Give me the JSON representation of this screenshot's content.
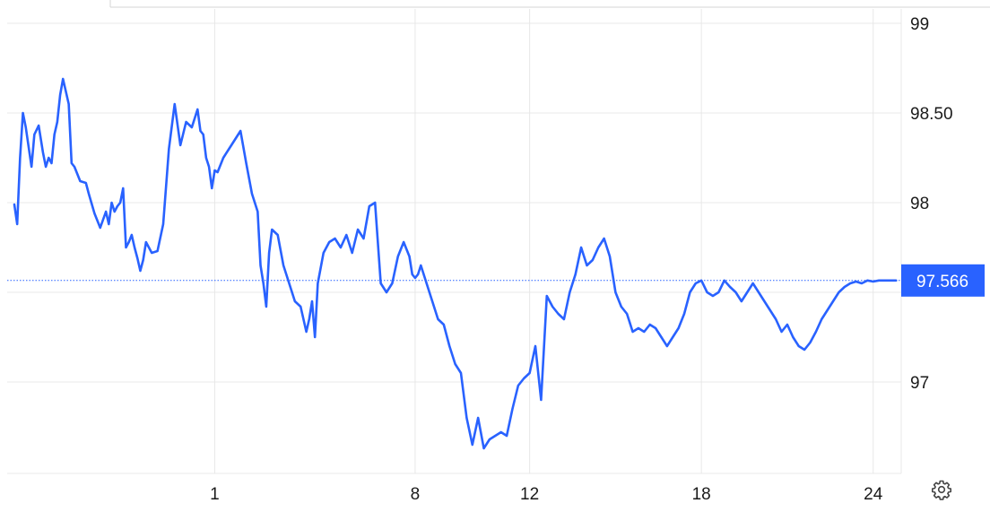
{
  "colors": {
    "line": "#2962ff",
    "grid": "#e8e8e8",
    "axis_border": "#d6d6d6",
    "current_price_bg": "#2962ff",
    "current_price_line": "#2962ff"
  },
  "icons": {
    "settings": "gear-icon"
  },
  "chart_data": {
    "type": "line",
    "title": "",
    "xlabel": "",
    "ylabel": "",
    "x_tick_labels": [
      "1",
      "8",
      "12",
      "18",
      "24"
    ],
    "x_tick_positions": [
      8,
      15,
      19,
      25,
      31
    ],
    "y_tick_labels": [
      "99",
      "98.50",
      "98",
      "97"
    ],
    "y_tick_values": [
      99,
      98.5,
      98,
      97
    ],
    "ylim": [
      96.49,
      99.08
    ],
    "xlim": [
      0.75,
      31.98
    ],
    "grid": true,
    "last_value_label": "97.566",
    "last_value": 97.566,
    "series": [
      {
        "x": [
          1.0,
          1.1,
          1.2,
          1.3,
          1.4,
          1.6,
          1.7,
          1.85,
          2.0,
          2.1,
          2.2,
          2.3,
          2.4,
          2.5,
          2.6,
          2.7,
          2.9,
          3.0,
          3.1,
          3.3,
          3.5,
          3.6,
          3.8,
          4.0,
          4.2,
          4.3,
          4.4,
          4.5,
          4.6,
          4.7,
          4.8,
          4.9,
          5.0,
          5.1,
          5.2,
          5.3,
          5.4,
          5.5,
          5.6,
          5.8,
          6.0,
          6.2,
          6.4,
          6.6,
          6.8,
          7.0,
          7.2,
          7.4,
          7.5,
          7.6,
          7.7,
          7.8,
          7.9,
          8.0,
          8.1,
          8.3,
          8.5,
          8.7,
          8.9,
          9.1,
          9.3,
          9.5,
          9.6,
          9.7,
          9.8,
          9.9,
          10.0,
          10.2,
          10.4,
          10.6,
          10.8,
          11.0,
          11.2,
          11.3,
          11.4,
          11.5,
          11.6,
          11.8,
          12.0,
          12.2,
          12.4,
          12.6,
          12.8,
          13.0,
          13.2,
          13.4,
          13.6,
          13.8,
          14.0,
          14.2,
          14.4,
          14.6,
          14.8,
          14.9,
          15.0,
          15.1,
          15.2,
          15.4,
          15.6,
          15.8,
          16.0,
          16.2,
          16.4,
          16.6,
          16.8,
          17.0,
          17.2,
          17.4,
          17.6,
          17.8,
          18.0,
          18.2,
          18.4,
          18.6,
          18.8,
          19.0,
          19.2,
          19.4,
          19.6,
          19.8,
          20.0,
          20.2,
          20.4,
          20.6,
          20.8,
          21.0,
          21.2,
          21.4,
          21.6,
          21.8,
          22.0,
          22.2,
          22.4,
          22.6,
          22.8,
          23.0,
          23.2,
          23.4,
          23.6,
          23.8,
          24.0,
          24.2,
          24.4,
          24.6,
          24.8,
          25.0,
          25.2,
          25.4,
          25.6,
          25.8,
          26.0,
          26.2,
          26.4,
          26.6,
          26.8,
          27.0,
          27.2,
          27.4,
          27.6,
          27.8,
          28.0,
          28.2,
          28.4,
          28.6,
          28.8,
          29.0,
          29.2,
          29.4,
          29.6,
          29.8,
          30.0,
          30.2,
          30.4,
          30.6,
          30.8,
          31.0,
          31.2,
          31.4,
          31.6,
          31.8
        ],
        "values": [
          97.99,
          97.88,
          98.25,
          98.5,
          98.42,
          98.2,
          98.38,
          98.43,
          98.28,
          98.2,
          98.25,
          98.22,
          98.38,
          98.45,
          98.6,
          98.69,
          98.55,
          98.22,
          98.2,
          98.12,
          98.11,
          98.05,
          97.94,
          97.86,
          97.95,
          97.88,
          98.0,
          97.95,
          97.98,
          98.0,
          98.08,
          97.75,
          97.78,
          97.82,
          97.75,
          97.69,
          97.62,
          97.68,
          97.78,
          97.72,
          97.73,
          97.88,
          98.3,
          98.55,
          98.32,
          98.45,
          98.42,
          98.52,
          98.4,
          98.38,
          98.25,
          98.2,
          98.08,
          98.18,
          98.17,
          98.25,
          98.3,
          98.35,
          98.4,
          98.22,
          98.05,
          97.95,
          97.65,
          97.55,
          97.42,
          97.72,
          97.85,
          97.82,
          97.65,
          97.55,
          97.45,
          97.42,
          97.28,
          97.35,
          97.45,
          97.25,
          97.55,
          97.72,
          97.78,
          97.8,
          97.75,
          97.82,
          97.72,
          97.85,
          97.8,
          97.98,
          98.0,
          97.55,
          97.5,
          97.55,
          97.7,
          97.78,
          97.7,
          97.6,
          97.58,
          97.6,
          97.65,
          97.55,
          97.45,
          97.35,
          97.32,
          97.2,
          97.1,
          97.05,
          96.8,
          96.65,
          96.8,
          96.63,
          96.68,
          96.7,
          96.72,
          96.7,
          96.85,
          96.98,
          97.02,
          97.05,
          97.2,
          96.9,
          97.48,
          97.42,
          97.38,
          97.35,
          97.5,
          97.6,
          97.75,
          97.65,
          97.68,
          97.75,
          97.8,
          97.7,
          97.5,
          97.42,
          97.38,
          97.28,
          97.3,
          97.28,
          97.32,
          97.3,
          97.25,
          97.2,
          97.25,
          97.3,
          97.38,
          97.5,
          97.55,
          97.566,
          97.5,
          97.48,
          97.5,
          97.566,
          97.53,
          97.5,
          97.45,
          97.5,
          97.55,
          97.5,
          97.45,
          97.4,
          97.35,
          97.28,
          97.32,
          97.25,
          97.2,
          97.18,
          97.22,
          97.28,
          97.35,
          97.4,
          97.45,
          97.5,
          97.53,
          97.55,
          97.56,
          97.55,
          97.566,
          97.56,
          97.566,
          97.566,
          97.566,
          97.566
        ]
      }
    ]
  }
}
